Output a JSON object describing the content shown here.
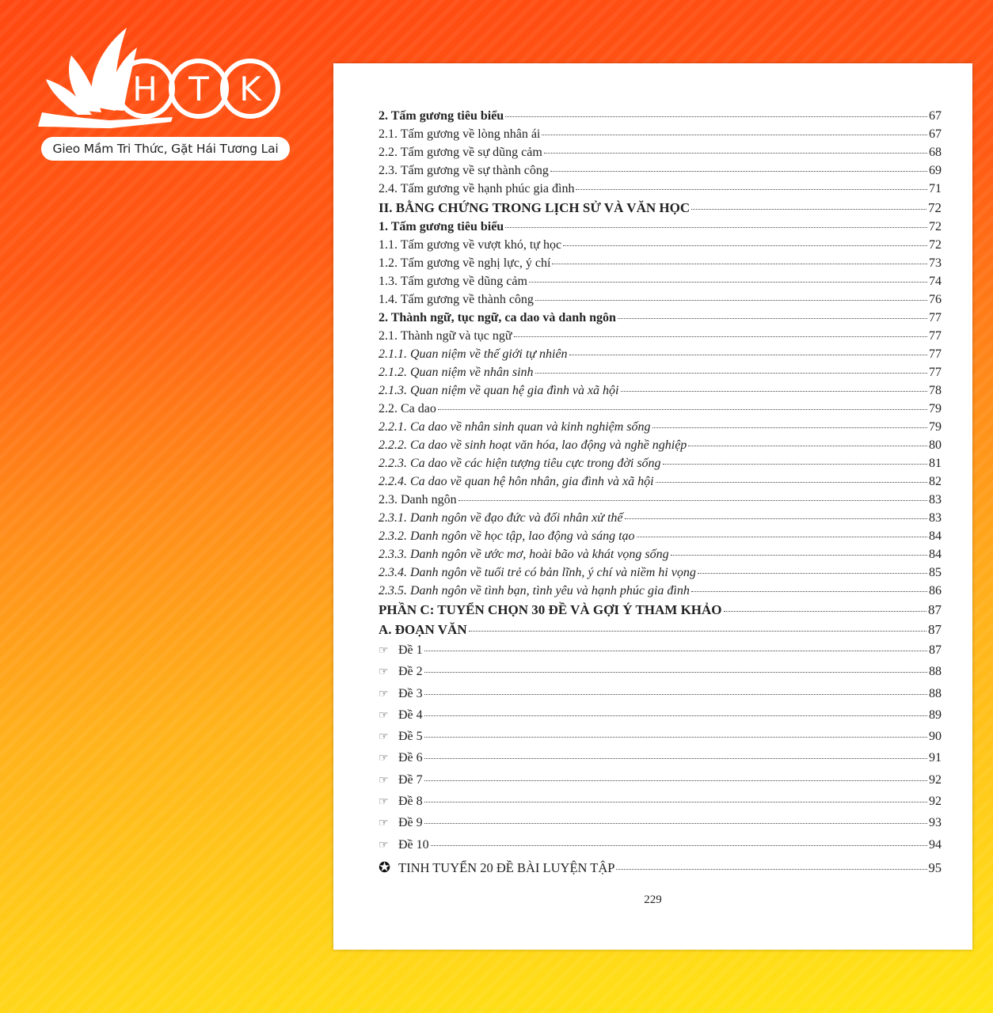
{
  "brand": {
    "logo_letters": [
      "H",
      "T",
      "K"
    ],
    "tagline": "Gieo Mầm Tri Thức, Gặt Hái Tương Lai",
    "colors": {
      "bg_top": "#ff4812",
      "bg_bottom": "#ffe616"
    }
  },
  "toc": [
    {
      "text": "2. Tấm gương tiêu biểu",
      "page": "67",
      "style": "b"
    },
    {
      "text": "2.1. Tấm gương về lòng nhân ái",
      "page": "67",
      "style": "n"
    },
    {
      "text": "2.2. Tấm gương về sự dũng cảm",
      "page": "68",
      "style": "n"
    },
    {
      "text": "2.3. Tấm gương về sự thành công",
      "page": "69",
      "style": "n"
    },
    {
      "text": "2.4. Tấm gương về hạnh phúc gia đình",
      "page": "71",
      "style": "n"
    },
    {
      "text": "II. BẰNG CHỨNG TRONG LỊCH SỬ VÀ VĂN HỌC",
      "page": "72",
      "style": "h"
    },
    {
      "text": "1. Tấm gương tiêu biểu",
      "page": "72",
      "style": "b"
    },
    {
      "text": "1.1. Tấm gương về vượt khó, tự học",
      "page": "72",
      "style": "n"
    },
    {
      "text": "1.2. Tấm gương về nghị lực, ý chí",
      "page": "73",
      "style": "n"
    },
    {
      "text": "1.3. Tấm gương về dũng cảm",
      "page": "74",
      "style": "n"
    },
    {
      "text": "1.4. Tấm gương về thành công",
      "page": "76",
      "style": "n"
    },
    {
      "text": "2. Thành ngữ, tục ngữ, ca dao và danh ngôn",
      "page": "77",
      "style": "b"
    },
    {
      "text": "2.1. Thành ngữ và tục ngữ",
      "page": "77",
      "style": "n"
    },
    {
      "text": "2.1.1. Quan niệm về thế giới tự nhiên",
      "page": "77",
      "style": "i"
    },
    {
      "text": "2.1.2. Quan niệm về nhân sinh",
      "page": "77",
      "style": "i"
    },
    {
      "text": "2.1.3. Quan niệm về quan hệ gia đình và xã hội",
      "page": "78",
      "style": "i"
    },
    {
      "text": "2.2. Ca dao",
      "page": "79",
      "style": "n"
    },
    {
      "text": "2.2.1. Ca dao về nhân sinh quan và kinh nghiệm sống",
      "page": "79",
      "style": "i"
    },
    {
      "text": "2.2.2. Ca dao về sinh hoạt văn hóa, lao động và nghề nghiệp",
      "page": "80",
      "style": "i"
    },
    {
      "text": "2.2.3. Ca dao về các hiện tượng tiêu cực trong đời sống",
      "page": "81",
      "style": "i"
    },
    {
      "text": "2.2.4. Ca dao về quan hệ hôn nhân, gia đình và xã hội",
      "page": "82",
      "style": "i"
    },
    {
      "text": "2.3. Danh ngôn",
      "page": "83",
      "style": "n"
    },
    {
      "text": "2.3.1. Danh ngôn về đạo đức và đối nhân xử thế",
      "page": "83",
      "style": "i"
    },
    {
      "text": "2.3.2. Danh ngôn về học tập, lao động và sáng tạo",
      "page": "84",
      "style": "i"
    },
    {
      "text": "2.3.3. Danh ngôn về ước mơ, hoài bão và khát vọng sống",
      "page": "84",
      "style": "i"
    },
    {
      "text": "2.3.4. Danh ngôn về tuổi trẻ có bản lĩnh, ý chí và niềm hi vọng",
      "page": "85",
      "style": "i"
    },
    {
      "text": "2.3.5. Danh ngôn về tình bạn, tình yêu và hạnh phúc gia đình",
      "page": "86",
      "style": "i"
    },
    {
      "text": "PHẦN C: TUYỂN CHỌN 30 ĐỀ VÀ GỢI Ý THAM KHẢO",
      "page": "87",
      "style": "h"
    },
    {
      "text": "A. ĐOẠN VĂN",
      "page": "87",
      "style": "a"
    },
    {
      "text": "Đề 1",
      "page": "87",
      "style": "de",
      "icon": "pointing-hand-icon"
    },
    {
      "text": "Đề 2",
      "page": "88",
      "style": "de",
      "icon": "pointing-hand-icon"
    },
    {
      "text": "Đề 3",
      "page": "88",
      "style": "de",
      "icon": "pointing-hand-icon"
    },
    {
      "text": "Đề 4",
      "page": "89",
      "style": "de",
      "icon": "pointing-hand-icon"
    },
    {
      "text": "Đề 5",
      "page": "90",
      "style": "de",
      "icon": "pointing-hand-icon"
    },
    {
      "text": "Đề 6",
      "page": "91",
      "style": "de",
      "icon": "pointing-hand-icon"
    },
    {
      "text": "Đề 7",
      "page": "92",
      "style": "de",
      "icon": "pointing-hand-icon"
    },
    {
      "text": "Đề 8",
      "page": "92",
      "style": "de",
      "icon": "pointing-hand-icon"
    },
    {
      "text": "Đề 9",
      "page": "93",
      "style": "de",
      "icon": "pointing-hand-icon"
    },
    {
      "text": "Đề 10",
      "page": "94",
      "style": "de",
      "icon": "pointing-hand-icon"
    },
    {
      "text": "TINH TUYỂN 20 ĐỀ BÀI LUYỆN TẬP",
      "page": "95",
      "style": "star",
      "icon": "star-circle-icon"
    }
  ],
  "page_number": "229"
}
